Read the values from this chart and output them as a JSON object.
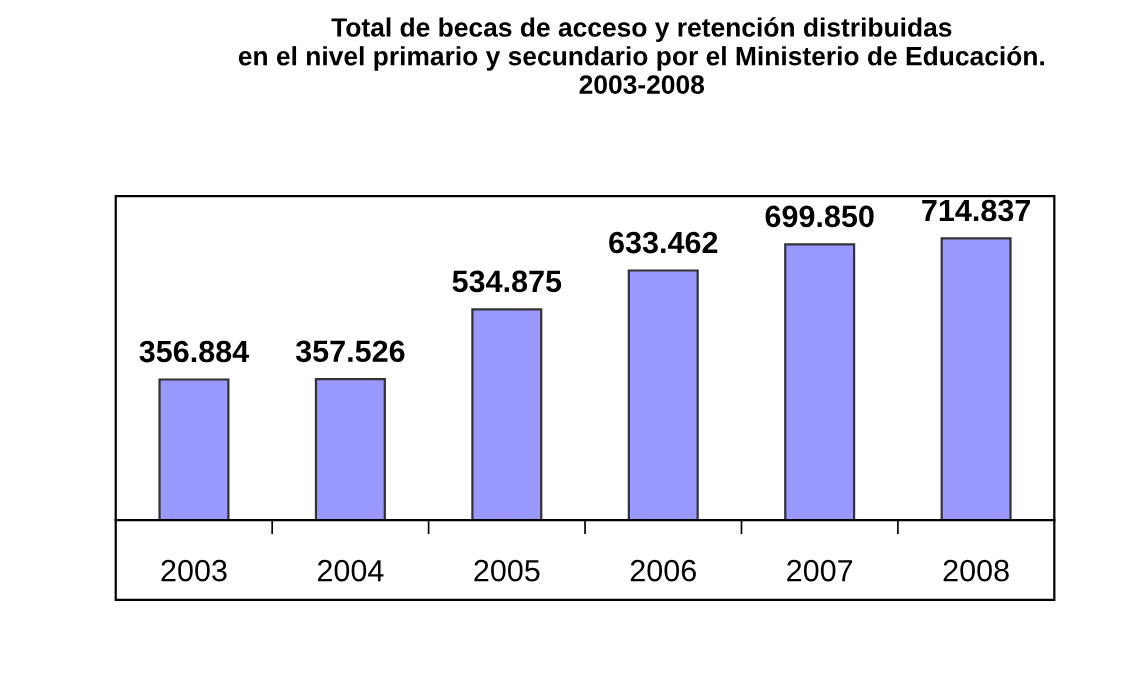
{
  "chart_data": {
    "type": "bar",
    "title": "Total de becas de acceso y retención distribuidas\nen el nivel primario y secundario por el Ministerio de Educación.\n2003-2008",
    "categories": [
      "2003",
      "2004",
      "2005",
      "2006",
      "2007",
      "2008"
    ],
    "values": [
      356884,
      357526,
      534875,
      633462,
      699850,
      714837
    ],
    "value_labels": [
      "356.884",
      "357.526",
      "534.875",
      "633.462",
      "699.850",
      "714.837"
    ],
    "color": "#9999ff",
    "tick_labels": "x"
  }
}
